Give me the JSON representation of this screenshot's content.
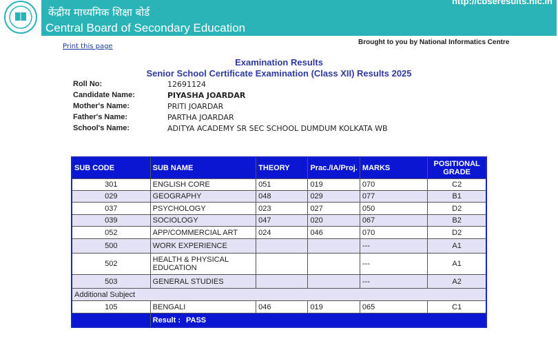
{
  "header": {
    "hindi_title": "केंद्रीय माध्यमिक शिक्षा बोर्ड",
    "english_title": "Central Board of Secondary Education",
    "url": "http://cbseresults.nic.in"
  },
  "print_link": "Print this page",
  "credit": "Brought to you by National Informatics Centre",
  "titles": [
    "Examination Results",
    "Senior School Certificate Examination (Class XII) Results 2025"
  ],
  "candidate": [
    {
      "label": "Roll No:",
      "value": "12691124"
    },
    {
      "label": "Candidate Name:",
      "value": "PIYASHA JOARDAR"
    },
    {
      "label": "Mother's Name:",
      "value": "PRITI JOARDAR"
    },
    {
      "label": "Father's Name:",
      "value": "PARTHA JOARDAR"
    },
    {
      "label": "School's Name:",
      "value": "ADITYA ACADEMY SR SEC SCHOOL DUMDUM KOLKATA WB"
    }
  ],
  "table": {
    "headers": [
      "SUB CODE",
      "SUB NAME",
      "THEORY",
      "Prac./IA/Proj.",
      "MARKS",
      "POSITIONAL GRADE"
    ],
    "rows": [
      {
        "code": "301",
        "name": "ENGLISH CORE",
        "theory": "051",
        "prac": "019",
        "marks": "070",
        "grade": "C2"
      },
      {
        "code": "029",
        "name": "GEOGRAPHY",
        "theory": "048",
        "prac": "029",
        "marks": "077",
        "grade": "B1"
      },
      {
        "code": "037",
        "name": "PSYCHOLOGY",
        "theory": "023",
        "prac": "027",
        "marks": "050",
        "grade": "D2"
      },
      {
        "code": "039",
        "name": "SOCIOLOGY",
        "theory": "047",
        "prac": "020",
        "marks": "067",
        "grade": "B2"
      },
      {
        "code": "052",
        "name": "APP/COMMERCIAL ART",
        "theory": "024",
        "prac": "046",
        "marks": "070",
        "grade": "D2"
      },
      {
        "code": "500",
        "name": "WORK EXPERIENCE",
        "marks": "---",
        "grade": "A1"
      },
      {
        "code": "502",
        "name": "HEALTH & PHYSICAL EDUCATION",
        "marks": "---",
        "grade": "A1"
      },
      {
        "code": "503",
        "name": "GENERAL STUDIES",
        "marks": "---",
        "grade": "A2"
      }
    ],
    "additional_label": "Additional Subject",
    "additional_rows": [
      {
        "code": "105",
        "name": "BENGALI",
        "theory": "046",
        "prac": "019",
        "marks": "065",
        "grade": "C1"
      }
    ],
    "result": {
      "label": "Result :",
      "value": "PASS"
    }
  }
}
